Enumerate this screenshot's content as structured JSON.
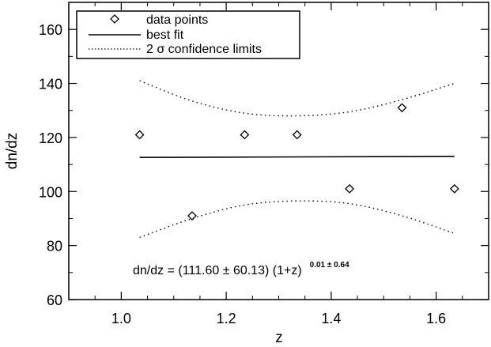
{
  "chart_data": {
    "type": "scatter",
    "xlabel": "z",
    "ylabel": "dn/dz",
    "xlim": [
      0.9,
      1.7
    ],
    "ylim": [
      60,
      170
    ],
    "x_ticks": [
      "1.0",
      "1.2",
      "1.4",
      "1.6"
    ],
    "y_ticks": [
      "60",
      "80",
      "100",
      "120",
      "140",
      "160"
    ],
    "grid": false,
    "legend_position": "top-left",
    "legend": [
      {
        "label": "data points",
        "style": "diamond"
      },
      {
        "label": "best fit",
        "style": "solid"
      },
      {
        "label": "2 σ confidence limits",
        "style": "dotted"
      }
    ],
    "series": [
      {
        "name": "data points",
        "type": "scatter",
        "marker": "diamond",
        "x": [
          1.035,
          1.135,
          1.235,
          1.335,
          1.435,
          1.535,
          1.635
        ],
        "y": [
          121,
          91,
          121,
          121,
          101,
          131,
          101
        ]
      },
      {
        "name": "best fit",
        "type": "line",
        "style": "solid",
        "x": [
          1.035,
          1.635
        ],
        "y": [
          112.6,
          113.0
        ]
      },
      {
        "name": "2 σ confidence limits (upper)",
        "type": "line",
        "style": "dotted",
        "x": [
          1.035,
          1.135,
          1.235,
          1.335,
          1.435,
          1.535,
          1.635
        ],
        "y": [
          141,
          133.5,
          129,
          128,
          129.5,
          134,
          140
        ]
      },
      {
        "name": "2 σ confidence limits (lower)",
        "type": "line",
        "style": "dotted",
        "x": [
          1.035,
          1.135,
          1.235,
          1.335,
          1.435,
          1.535,
          1.635
        ],
        "y": [
          83,
          90,
          95,
          96.5,
          95.5,
          91,
          84.5
        ]
      }
    ],
    "annotation": {
      "main": "dn/dz = (111.60 ± 60.13) (1+z)",
      "exponent": "0.01 ± 0.64"
    }
  }
}
